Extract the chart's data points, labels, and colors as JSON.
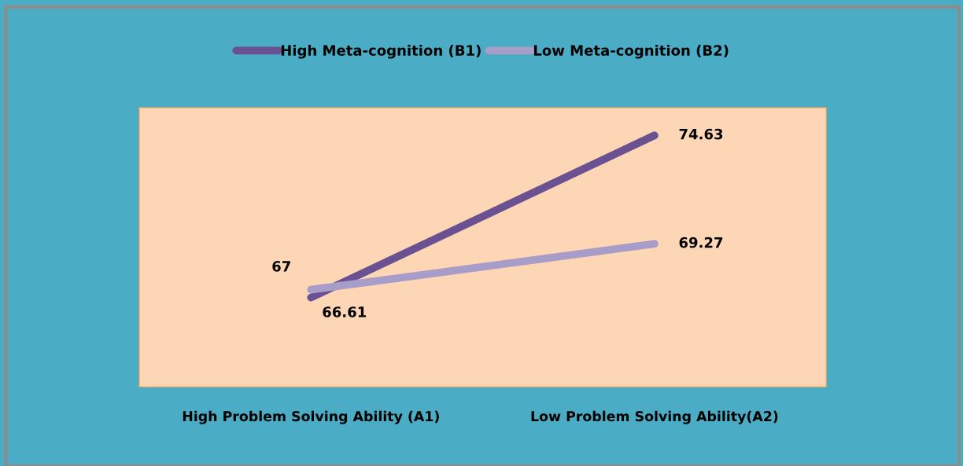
{
  "chart_data": {
    "type": "line",
    "categories": [
      "High Problem Solving Ability (A1)",
      "Low Problem Solving Ability(A2)"
    ],
    "series": [
      {
        "name": "High Meta-cognition (B1)",
        "color": "#6a5191",
        "values": [
          66.61,
          74.63
        ]
      },
      {
        "name": "Low Meta-cognition (B2)",
        "color": "#a89cc8",
        "values": [
          67,
          69.27
        ]
      }
    ],
    "ylim": [
      62.2,
      76
    ],
    "tick_labels": "x",
    "data_labels": true,
    "legend": "top",
    "grid": false,
    "marker": "none",
    "line_style": "solid"
  }
}
